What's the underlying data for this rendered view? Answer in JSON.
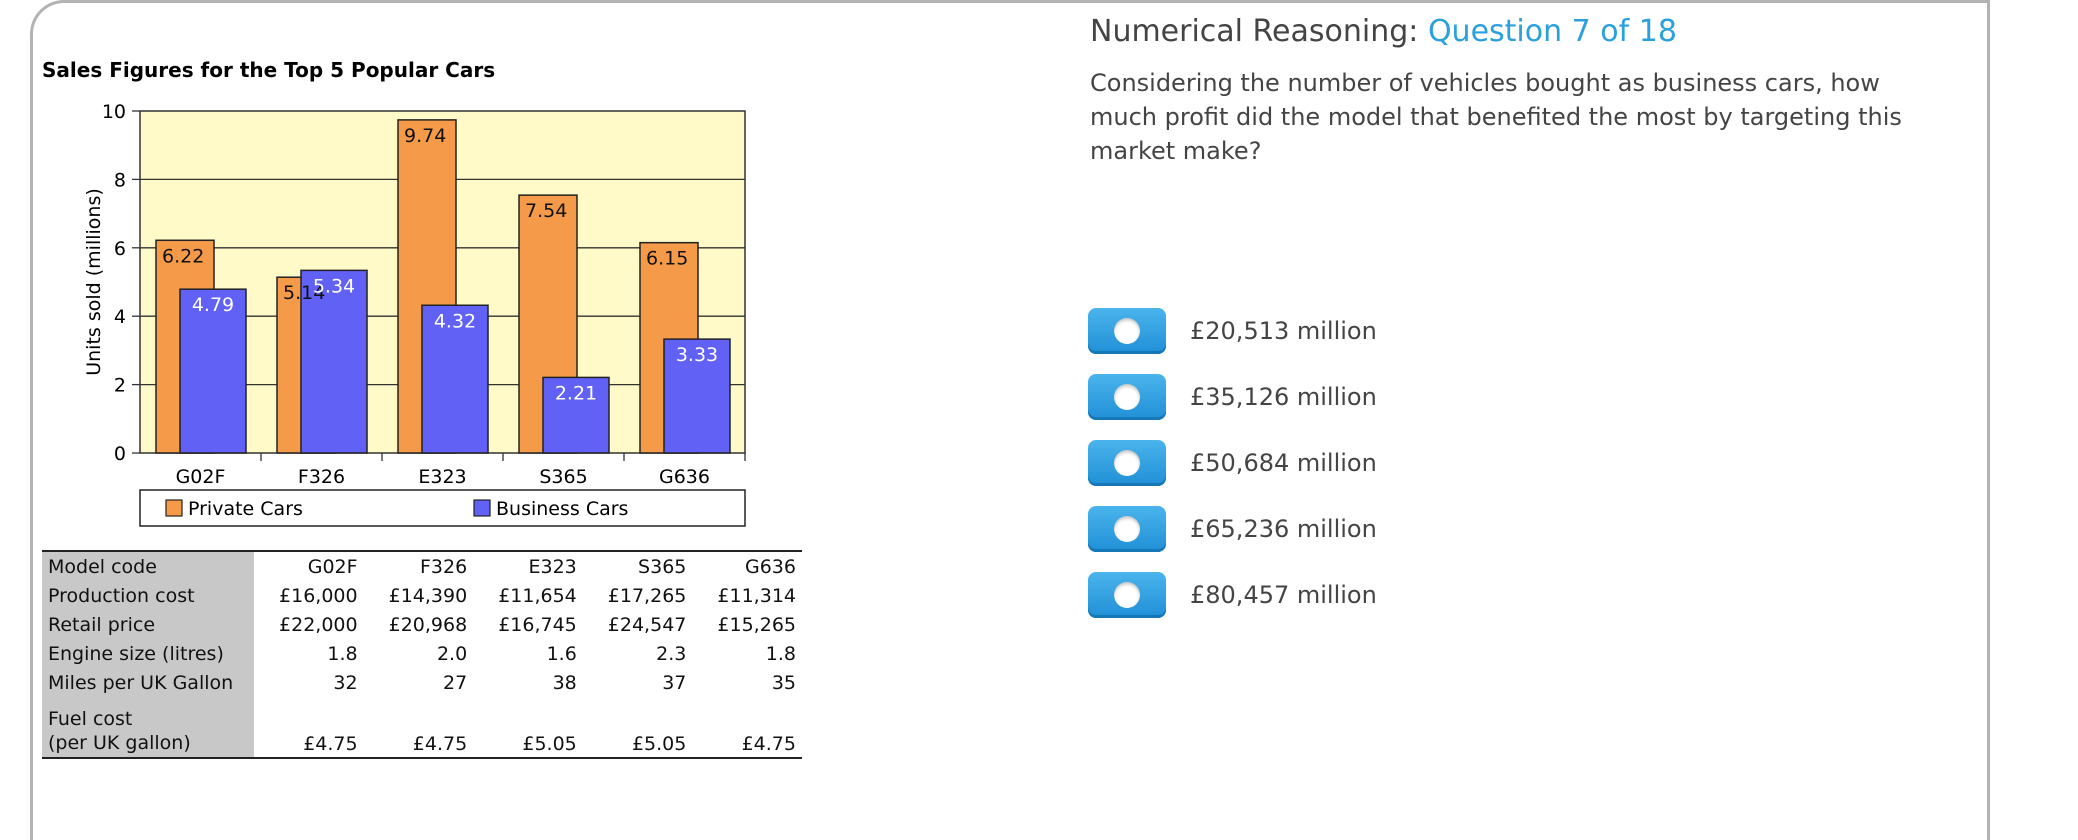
{
  "chart": {
    "title": "Sales Figures for the Top 5 Popular Cars"
  },
  "chart_data": {
    "type": "bar",
    "title": "Sales Figures for the Top 5 Popular Cars",
    "xlabel": "",
    "ylabel": "Units sold (millions)",
    "ylim": [
      0,
      10
    ],
    "yticks": [
      "0",
      "2",
      "4",
      "6",
      "8",
      "10"
    ],
    "categories": [
      "G02F",
      "F326",
      "E323",
      "S365",
      "G636"
    ],
    "series": [
      {
        "name": "Private Cars",
        "values": [
          6.22,
          5.14,
          9.74,
          7.54,
          6.15
        ],
        "labels": [
          "6.22",
          "5.14",
          "9.74",
          "7.54",
          "6.15"
        ],
        "color": "#f49a48"
      },
      {
        "name": "Business Cars",
        "values": [
          4.79,
          5.34,
          4.32,
          2.21,
          3.33
        ],
        "labels": [
          "4.79",
          "5.34",
          "4.32",
          "2.21",
          "3.33"
        ],
        "color": "#6161f5"
      }
    ],
    "plot_bg": "#fffac8",
    "grid": true,
    "legend": "bottom"
  },
  "table": {
    "header": [
      "Model code",
      "G02F",
      "F326",
      "E323",
      "S365",
      "G636"
    ],
    "rows": [
      [
        "Production cost",
        "£16,000",
        "£14,390",
        "£11,654",
        "£17,265",
        "£11,314"
      ],
      [
        "Retail price",
        "£22,000",
        "£20,968",
        "£16,745",
        "£24,547",
        "£15,265"
      ],
      [
        "Engine size (litres)",
        "1.8",
        "2.0",
        "1.6",
        "2.3",
        "1.8"
      ],
      [
        "Miles per UK Gallon",
        "32",
        "27",
        "38",
        "37",
        "35"
      ]
    ],
    "fuel_row": {
      "label_line1": "Fuel cost",
      "label_line2": "(per UK gallon)",
      "values": [
        "£4.75",
        "£4.75",
        "£5.05",
        "£5.05",
        "£4.75"
      ]
    }
  },
  "question": {
    "heading": "Numerical Reasoning:",
    "number": "Question 7 of 18",
    "text": "Considering the number of vehicles bought as business cars, how much profit did the model that benefited the most by targeting this market make?",
    "options": [
      "£20,513 million",
      "£35,126 million",
      "£50,684 million",
      "£65,236 million",
      "£80,457 million"
    ]
  },
  "colors": {
    "accent": "#2aa0dd",
    "private": "#f49a48",
    "business": "#6161f5"
  }
}
